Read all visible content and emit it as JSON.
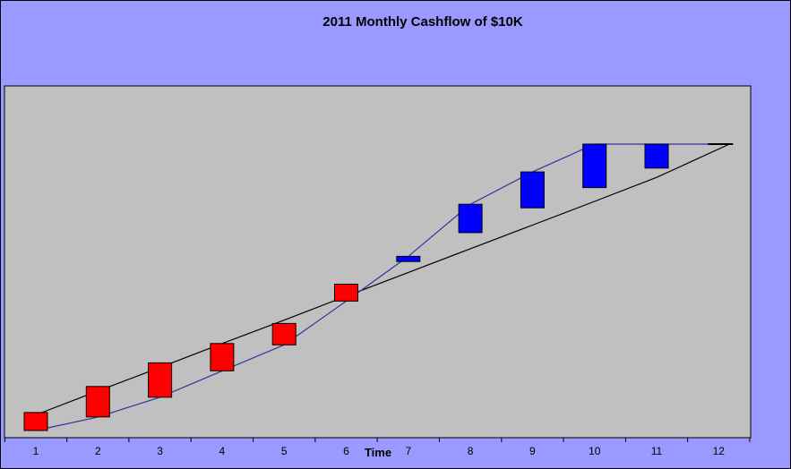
{
  "chart_data": {
    "type": "bar",
    "subtype": "floating-bar (candlestick-style cumulative cashflow)",
    "title": "2011 Monthly Cashflow of $10K",
    "xlabel": "Time",
    "ylabel": "",
    "categories": [
      "1",
      "2",
      "3",
      "4",
      "5",
      "6",
      "7",
      "8",
      "9",
      "10",
      "11",
      "12"
    ],
    "ylim": [
      0,
      11
    ],
    "y_ticks_shown": false,
    "grid": false,
    "legend": "none",
    "bars": [
      {
        "x": 1,
        "low": 0.0,
        "high": 0.69,
        "direction": "down"
      },
      {
        "x": 2,
        "low": 0.52,
        "high": 1.69,
        "direction": "down"
      },
      {
        "x": 3,
        "low": 1.28,
        "high": 2.6,
        "direction": "down"
      },
      {
        "x": 4,
        "low": 2.29,
        "high": 3.34,
        "direction": "down"
      },
      {
        "x": 5,
        "low": 3.29,
        "high": 4.11,
        "direction": "down"
      },
      {
        "x": 6,
        "low": 4.97,
        "high": 5.62,
        "direction": "down"
      },
      {
        "x": 7,
        "low": 6.49,
        "high": 6.69,
        "direction": "up"
      },
      {
        "x": 8,
        "low": 7.6,
        "high": 8.69,
        "direction": "up"
      },
      {
        "x": 9,
        "low": 8.55,
        "high": 9.93,
        "direction": "up"
      },
      {
        "x": 10,
        "low": 9.33,
        "high": 11.0,
        "direction": "up"
      },
      {
        "x": 11,
        "low": 10.08,
        "high": 11.0,
        "direction": "up"
      },
      {
        "x": 12,
        "low": 11.0,
        "high": 11.0,
        "direction": "flat"
      }
    ],
    "series": [
      {
        "role": "linear-reference",
        "points": [
          [
            1,
            0.6
          ],
          [
            2,
            1.52
          ],
          [
            3,
            2.42
          ],
          [
            4,
            3.34
          ],
          [
            5,
            4.24
          ],
          [
            6,
            5.16
          ],
          [
            7,
            6.07
          ],
          [
            8,
            6.98
          ],
          [
            9,
            7.89
          ],
          [
            10,
            8.8
          ],
          [
            11,
            9.72
          ],
          [
            12,
            11.0
          ]
        ]
      },
      {
        "role": "cumulative",
        "points": [
          [
            1,
            0.0
          ],
          [
            2,
            0.52
          ],
          [
            3,
            1.28
          ],
          [
            4,
            2.29
          ],
          [
            5,
            3.29
          ],
          [
            6,
            4.97
          ],
          [
            7,
            6.69
          ],
          [
            8,
            8.69
          ],
          [
            9,
            9.93
          ],
          [
            10,
            11.0
          ],
          [
            11,
            11.0
          ],
          [
            12,
            11.0
          ]
        ]
      }
    ],
    "colors": {
      "background": "#9999ff",
      "plot_area": "#c0c0c0",
      "down_bar": "#ff0000",
      "up_bar": "#0000ff",
      "linear_line": "#000000",
      "cumulative_line": "#33339a"
    }
  }
}
